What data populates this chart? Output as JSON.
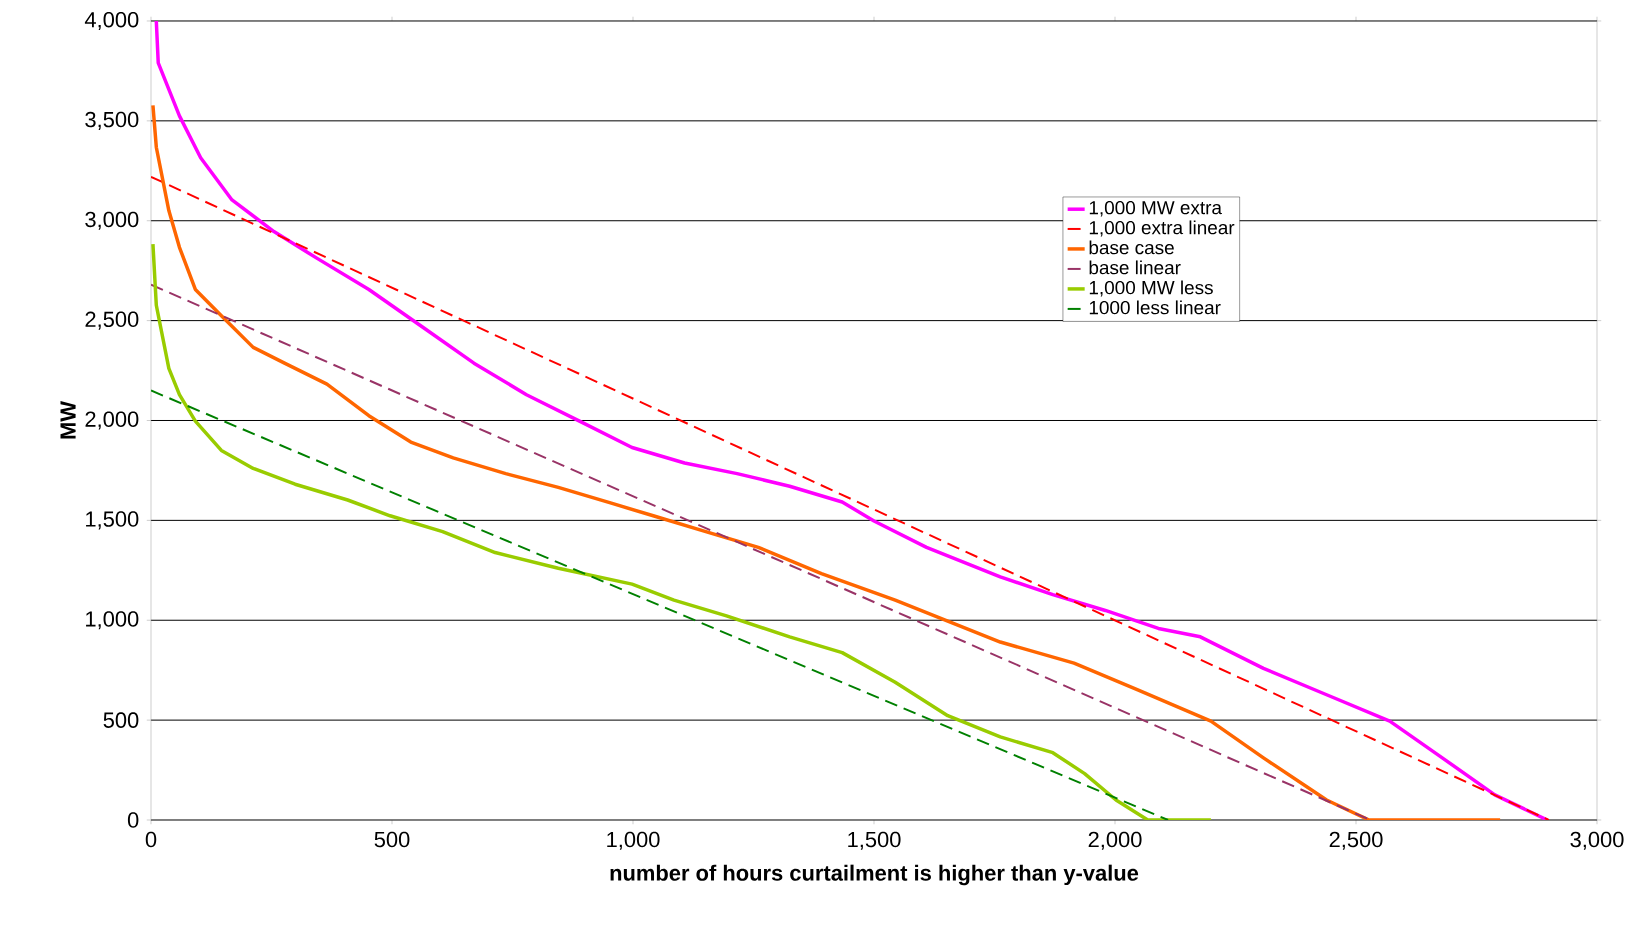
{
  "chart_data": {
    "type": "line",
    "xlabel": "number of hours curtailment is higher than y-value",
    "ylabel": "MW",
    "xlim": [
      0,
      3000
    ],
    "ylim": [
      0,
      4000
    ],
    "xticks": [
      {
        "value": 0,
        "label": "0"
      },
      {
        "value": 500,
        "label": "500"
      },
      {
        "value": 1000,
        "label": "1,000"
      },
      {
        "value": 1500,
        "label": "1,500"
      },
      {
        "value": 2000,
        "label": "2,000"
      },
      {
        "value": 2500,
        "label": "2,500"
      },
      {
        "value": 3000,
        "label": "3,000"
      }
    ],
    "yticks": [
      {
        "value": 0,
        "label": "0"
      },
      {
        "value": 500,
        "label": "500"
      },
      {
        "value": 1000,
        "label": "1,000"
      },
      {
        "value": 1500,
        "label": "1,500"
      },
      {
        "value": 2000,
        "label": "2,000"
      },
      {
        "value": 2500,
        "label": "2,500"
      },
      {
        "value": 3000,
        "label": "3,000"
      },
      {
        "value": 3500,
        "label": "3,500"
      },
      {
        "value": 4000,
        "label": "4,000"
      }
    ],
    "grid": "y",
    "legend": "top",
    "marker": "none",
    "series": [
      {
        "name": "1,000 MW extra",
        "color": "#ff00ff",
        "line_style": "solid",
        "x": [
          11,
          15,
          59,
          103,
          168,
          255,
          343,
          452,
          561,
          670,
          779,
          889,
          998,
          1107,
          1216,
          1325,
          1434,
          1500,
          1609,
          1762,
          1871,
          1980,
          2090,
          2177,
          2308,
          2439,
          2570,
          2679,
          2788,
          2897
        ],
        "values": [
          4000,
          3790,
          3525,
          3315,
          3104,
          2946,
          2814,
          2656,
          2472,
          2287,
          2129,
          1997,
          1865,
          1787,
          1734,
          1671,
          1592,
          1497,
          1365,
          1217,
          1128,
          1049,
          959,
          917,
          759,
          627,
          495,
          311,
          126,
          0
        ]
      },
      {
        "name": "1,000 extra linear",
        "color": "#ff0000",
        "line_style": "dashed",
        "x": [
          0,
          2900
        ],
        "values": [
          3220,
          0
        ]
      },
      {
        "name": "base case",
        "color": "#ff6600",
        "line_style": "solid",
        "x": [
          4,
          11,
          37,
          59,
          92,
          146,
          212,
          277,
          365,
          452,
          539,
          627,
          736,
          845,
          955,
          1042,
          1151,
          1260,
          1391,
          1544,
          1653,
          1762,
          1915,
          2046,
          2199,
          2308,
          2439,
          2527,
          2799
        ],
        "values": [
          3578,
          3368,
          3051,
          2867,
          2656,
          2524,
          2366,
          2287,
          2182,
          2024,
          1892,
          1813,
          1734,
          1665,
          1586,
          1523,
          1444,
          1365,
          1233,
          1101,
          996,
          891,
          785,
          653,
          495,
          311,
          100,
          0,
          0
        ]
      },
      {
        "name": "base linear",
        "color": "#993366",
        "line_style": "dashed",
        "x": [
          0,
          2530
        ],
        "values": [
          2680,
          0
        ]
      },
      {
        "name": "1,000 MW less",
        "color": "#99cc00",
        "line_style": "solid",
        "x": [
          4,
          11,
          37,
          59,
          92,
          146,
          212,
          299,
          408,
          496,
          605,
          714,
          845,
          998,
          1085,
          1194,
          1325,
          1434,
          1544,
          1653,
          1762,
          1871,
          1937,
          2002,
          2068,
          2199
        ],
        "values": [
          2883,
          2577,
          2261,
          2129,
          1997,
          1850,
          1760,
          1681,
          1602,
          1523,
          1444,
          1339,
          1260,
          1181,
          1101,
          1022,
          917,
          838,
          690,
          522,
          416,
          337,
          232,
          100,
          0,
          0
        ]
      },
      {
        "name": "1000 less linear",
        "color": "#008000",
        "line_style": "dashed",
        "x": [
          0,
          2110
        ],
        "values": [
          2150,
          0
        ]
      }
    ]
  }
}
